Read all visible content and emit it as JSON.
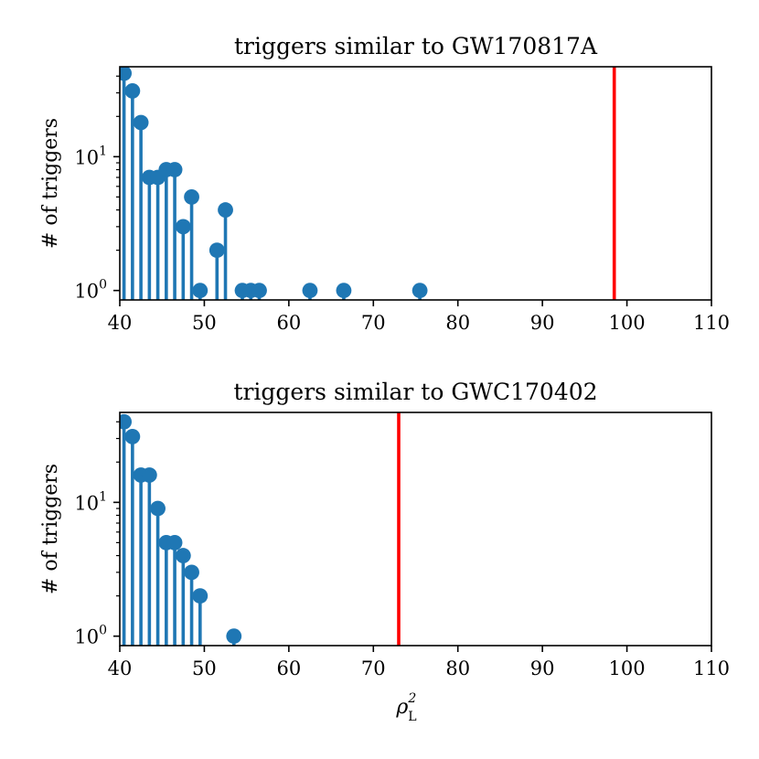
{
  "chart_data": [
    {
      "type": "stem",
      "title": "triggers similar to GW170817A",
      "xlabel": "",
      "ylabel": "# of triggers",
      "xlim": [
        40,
        110
      ],
      "x_ticks": [
        40,
        50,
        60,
        70,
        80,
        90,
        100,
        110
      ],
      "y_scale": "log",
      "ylim": [
        0.85,
        47
      ],
      "y_ticks": [
        {
          "base": "10",
          "exp": "0",
          "value": 1
        },
        {
          "base": "10",
          "exp": "1",
          "value": 10
        }
      ],
      "stem_color": "#1f77b4",
      "points": [
        {
          "x": 40.5,
          "y": 42
        },
        {
          "x": 41.5,
          "y": 31
        },
        {
          "x": 42.5,
          "y": 18
        },
        {
          "x": 43.5,
          "y": 7
        },
        {
          "x": 44.5,
          "y": 7
        },
        {
          "x": 45.5,
          "y": 8
        },
        {
          "x": 46.5,
          "y": 8
        },
        {
          "x": 47.5,
          "y": 3
        },
        {
          "x": 48.5,
          "y": 5
        },
        {
          "x": 49.5,
          "y": 1
        },
        {
          "x": 51.5,
          "y": 2
        },
        {
          "x": 52.5,
          "y": 4
        },
        {
          "x": 54.5,
          "y": 1
        },
        {
          "x": 55.5,
          "y": 1
        },
        {
          "x": 56.5,
          "y": 1
        },
        {
          "x": 62.5,
          "y": 1
        },
        {
          "x": 66.5,
          "y": 1
        },
        {
          "x": 75.5,
          "y": 1
        }
      ],
      "marker_line": {
        "x": 98.5,
        "color": "#ff0000"
      }
    },
    {
      "type": "stem",
      "title": "triggers similar to GWC170402",
      "xlabel": "ρ",
      "xlabel_sup": "2",
      "xlabel_sub": "L",
      "ylabel": "# of triggers",
      "xlim": [
        40,
        110
      ],
      "x_ticks": [
        40,
        50,
        60,
        70,
        80,
        90,
        100,
        110
      ],
      "y_scale": "log",
      "ylim": [
        0.85,
        47
      ],
      "y_ticks": [
        {
          "base": "10",
          "exp": "0",
          "value": 1
        },
        {
          "base": "10",
          "exp": "1",
          "value": 10
        }
      ],
      "stem_color": "#1f77b4",
      "points": [
        {
          "x": 40.5,
          "y": 40
        },
        {
          "x": 41.5,
          "y": 31
        },
        {
          "x": 42.5,
          "y": 16
        },
        {
          "x": 43.5,
          "y": 16
        },
        {
          "x": 44.5,
          "y": 9
        },
        {
          "x": 45.5,
          "y": 5
        },
        {
          "x": 46.5,
          "y": 5
        },
        {
          "x": 47.5,
          "y": 4
        },
        {
          "x": 48.5,
          "y": 3
        },
        {
          "x": 49.5,
          "y": 2
        },
        {
          "x": 53.5,
          "y": 1
        }
      ],
      "marker_line": {
        "x": 73,
        "color": "#ff0000"
      }
    }
  ]
}
